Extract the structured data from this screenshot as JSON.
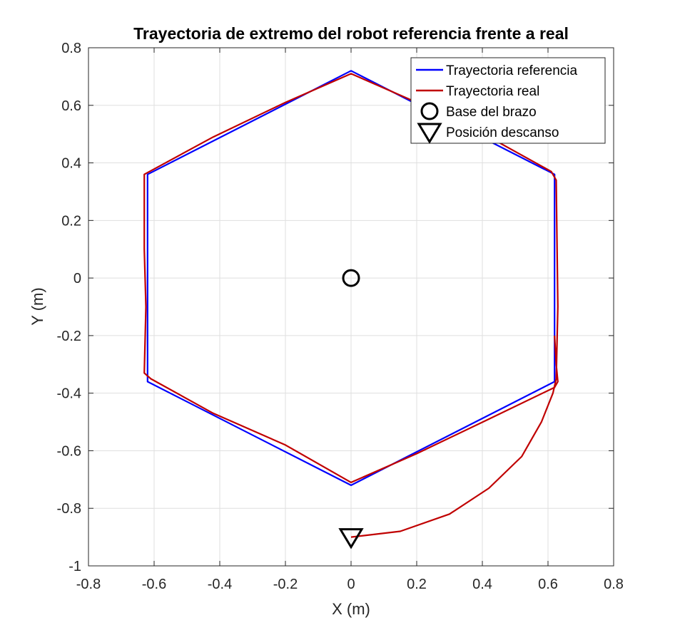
{
  "chart_data": {
    "type": "line",
    "title": "Trayectoria de extremo del robot referencia frente a real",
    "xlabel": "X (m)",
    "ylabel": "Y (m)",
    "xlim": [
      -0.8,
      0.8
    ],
    "ylim": [
      -1,
      0.8
    ],
    "xticks": [
      -0.8,
      -0.6,
      -0.4,
      -0.2,
      0,
      0.2,
      0.4,
      0.6,
      0.8
    ],
    "yticks": [
      -1,
      -0.8,
      -0.6,
      -0.4,
      -0.2,
      0,
      0.2,
      0.4,
      0.6,
      0.8
    ],
    "xtick_labels": [
      "-0.8",
      "-0.6",
      "-0.4",
      "-0.2",
      "0",
      "0.2",
      "0.4",
      "0.6",
      "0.8"
    ],
    "ytick_labels": [
      "-1",
      "-0.8",
      "-0.6",
      "-0.4",
      "-0.2",
      "0",
      "0.2",
      "0.4",
      "0.6",
      "0.8"
    ],
    "grid": true,
    "legend_position": "top-right",
    "series": [
      {
        "name": "Trayectoria referencia",
        "color": "#0000ff",
        "marker": "none",
        "x": [
          0.62,
          0.62,
          0.0,
          -0.62,
          -0.62,
          0.0,
          0.62,
          0.62
        ],
        "y": [
          -0.36,
          0.36,
          0.72,
          0.36,
          -0.36,
          -0.72,
          -0.36,
          0.0
        ]
      },
      {
        "name": "Trayectoria real",
        "color": "#c00000",
        "marker": "none",
        "x": [
          0.0,
          0.15,
          0.3,
          0.42,
          0.52,
          0.58,
          0.615,
          0.625,
          0.63,
          0.625,
          0.61,
          0.42,
          0.2,
          0.0,
          -0.2,
          -0.42,
          -0.63,
          -0.63,
          -0.625,
          -0.63,
          -0.61,
          -0.42,
          -0.2,
          0.0,
          0.2,
          0.42,
          0.62,
          0.63,
          0.625,
          0.62
        ],
        "y": [
          -0.9,
          -0.88,
          -0.82,
          -0.73,
          -0.62,
          -0.5,
          -0.4,
          -0.35,
          -0.1,
          0.34,
          0.37,
          0.49,
          0.61,
          0.71,
          0.61,
          0.49,
          0.36,
          0.1,
          -0.1,
          -0.33,
          -0.35,
          -0.47,
          -0.58,
          -0.71,
          -0.61,
          -0.49,
          -0.38,
          -0.36,
          -0.3,
          -0.2
        ]
      },
      {
        "name": "Base del brazo",
        "color": "#000000",
        "marker": "circle",
        "x": [
          0
        ],
        "y": [
          0
        ]
      },
      {
        "name": "Posición descanso",
        "color": "#000000",
        "marker": "triangle-down",
        "x": [
          0
        ],
        "y": [
          -0.9
        ]
      }
    ]
  }
}
